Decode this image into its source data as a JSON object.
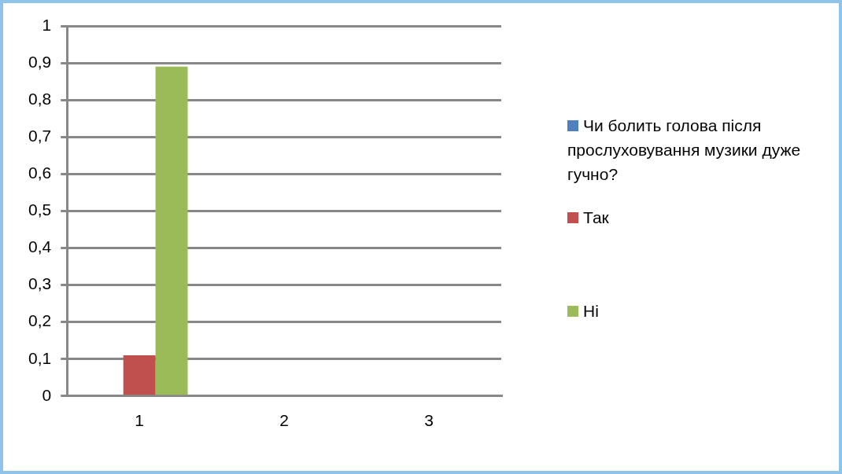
{
  "chart_data": {
    "type": "bar",
    "categories": [
      "1",
      "2",
      "3"
    ],
    "series": [
      {
        "name": "Чи болить голова після прослуховування музики дуже гучно?",
        "color": "#4f81bd",
        "values": [
          null,
          null,
          null
        ]
      },
      {
        "name": "Так",
        "color": "#c0504d",
        "values": [
          0.11,
          null,
          null
        ]
      },
      {
        "name": "Ні",
        "color": "#9bbb59",
        "values": [
          0.89,
          null,
          null
        ]
      }
    ],
    "ylim": [
      0,
      1
    ],
    "yticks": [
      {
        "value": 0,
        "label": "0"
      },
      {
        "value": 0.1,
        "label": "0,1"
      },
      {
        "value": 0.2,
        "label": "0,2"
      },
      {
        "value": 0.3,
        "label": "0,3"
      },
      {
        "value": 0.4,
        "label": "0,4"
      },
      {
        "value": 0.5,
        "label": "0,5"
      },
      {
        "value": 0.6,
        "label": "0,6"
      },
      {
        "value": 0.7,
        "label": "0,7"
      },
      {
        "value": 0.8,
        "label": "0,8"
      },
      {
        "value": 0.9,
        "label": "0,9"
      },
      {
        "value": 1,
        "label": "1"
      }
    ],
    "grid": "y",
    "legend": "right"
  }
}
